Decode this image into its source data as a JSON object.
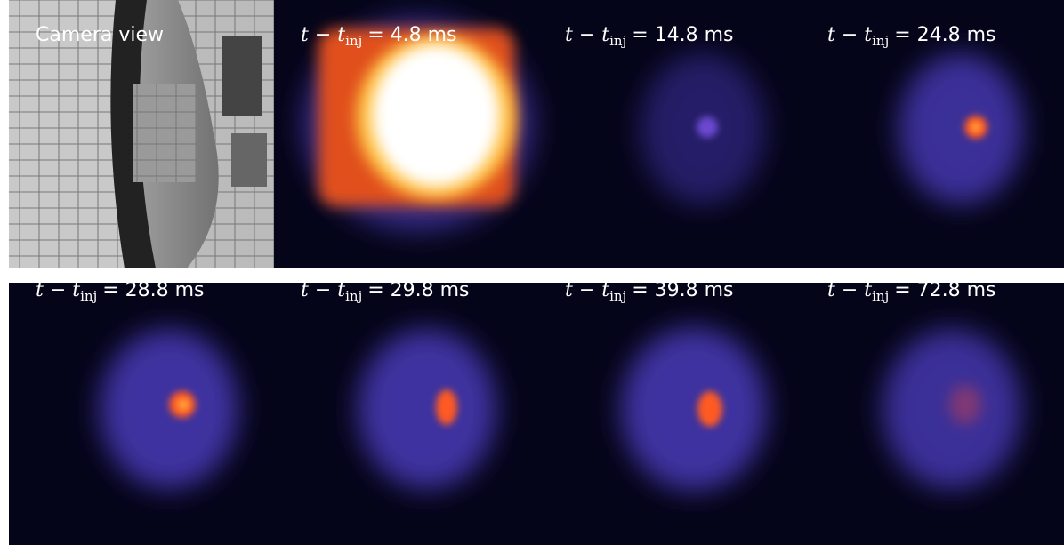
{
  "panels": [
    {
      "label": "Camera view"
    },
    {
      "time_label": {
        "lhs": "t − t",
        "sub": "inj",
        "rhs": "= 4.8 ms"
      }
    },
    {
      "time_label": {
        "lhs": "t − t",
        "sub": "inj",
        "rhs": "= 14.8 ms"
      }
    },
    {
      "time_label": {
        "lhs": "t − t",
        "sub": "inj",
        "rhs": "= 24.8 ms"
      }
    },
    {
      "time_label": {
        "lhs": "t − t",
        "sub": "inj",
        "rhs": "= 28.8 ms"
      }
    },
    {
      "time_label": {
        "lhs": "t − t",
        "sub": "inj",
        "rhs": "= 29.8 ms"
      }
    },
    {
      "time_label": {
        "lhs": "t − t",
        "sub": "inj",
        "rhs": "= 39.8 ms"
      }
    },
    {
      "time_label": {
        "lhs": "t − t",
        "sub": "inj",
        "rhs": "= 72.8 ms"
      }
    }
  ]
}
